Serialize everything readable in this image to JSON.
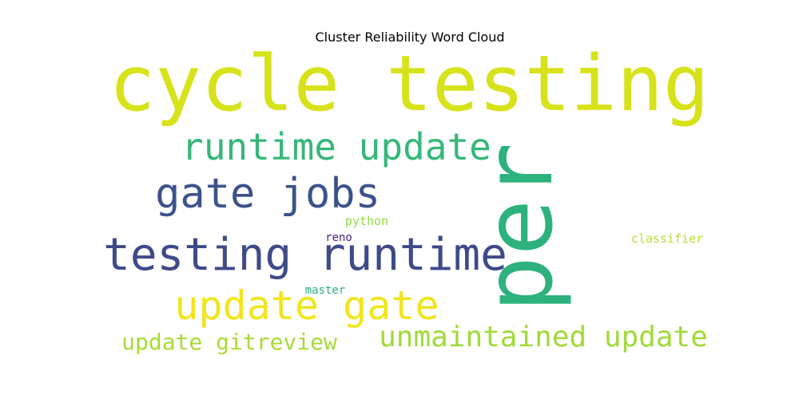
{
  "chart_data": {
    "type": "wordcloud",
    "title": "Cluster Reliability Word Cloud",
    "background": "#ffffff",
    "words": [
      {
        "text": "cycle testing",
        "color": "#d7e21a"
      },
      {
        "text": "per",
        "color": "#2db27d"
      },
      {
        "text": "runtime update",
        "color": "#35b779"
      },
      {
        "text": "gate jobs",
        "color": "#3b528b"
      },
      {
        "text": "testing runtime",
        "color": "#3e4a89"
      },
      {
        "text": "update gate",
        "color": "#f1e51d"
      },
      {
        "text": "unmaintained update",
        "color": "#a0da39"
      },
      {
        "text": "update gitreview",
        "color": "#a8db34"
      },
      {
        "text": "python",
        "color": "#95d840"
      },
      {
        "text": "classifier",
        "color": "#b5de2b"
      },
      {
        "text": "reno",
        "color": "#482576"
      },
      {
        "text": "master",
        "color": "#29af7f"
      }
    ]
  }
}
